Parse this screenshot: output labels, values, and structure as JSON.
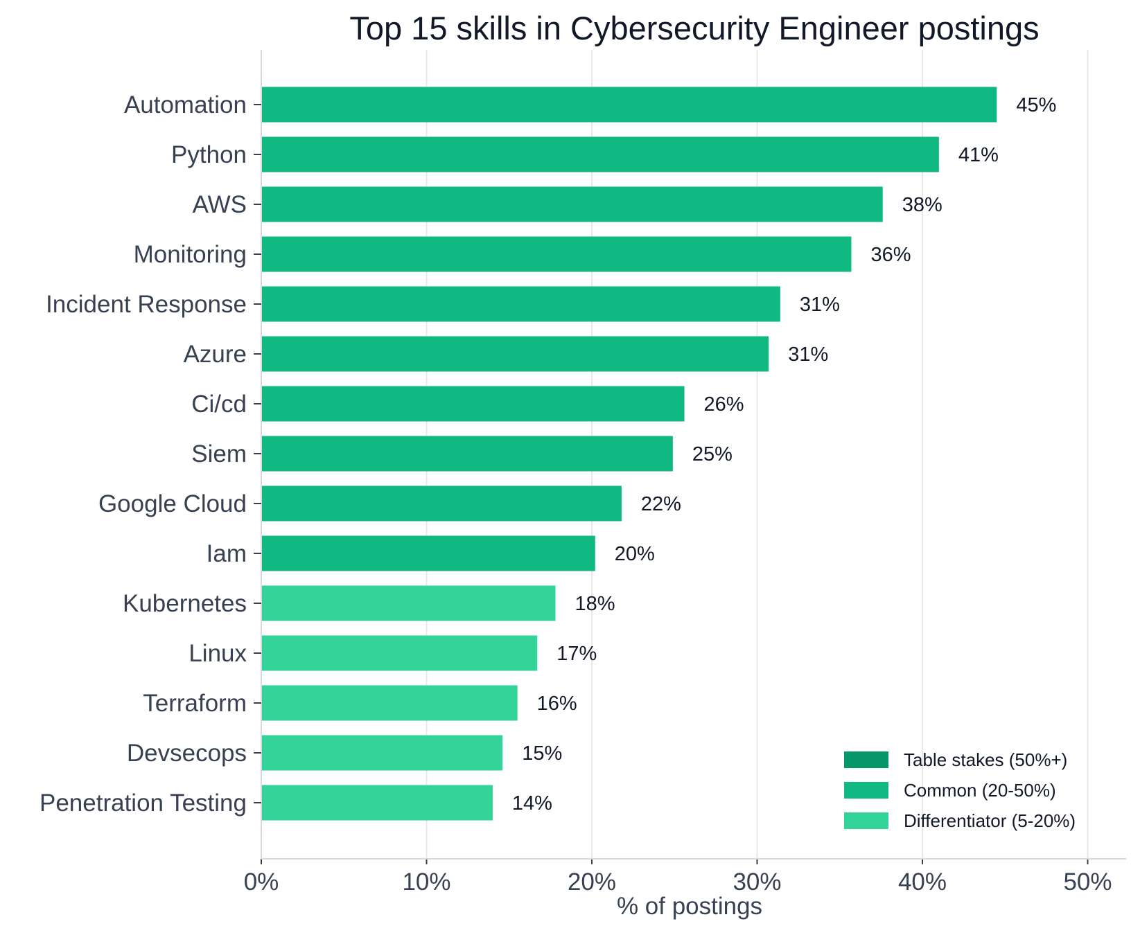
{
  "chart_data": {
    "type": "bar",
    "orientation": "horizontal",
    "title": "Top 15 skills in Cybersecurity Engineer postings",
    "xlabel": "% of postings",
    "ylabel": "",
    "xlim": [
      0,
      52
    ],
    "x_ticks": [
      0,
      10,
      20,
      30,
      40,
      50
    ],
    "x_tick_labels": [
      "0%",
      "10%",
      "20%",
      "30%",
      "40%",
      "50%"
    ],
    "grid": "vertical",
    "legend_position": "bottom-right",
    "categories": [
      "Automation",
      "Python",
      "AWS",
      "Monitoring",
      "Incident Response",
      "Azure",
      "Ci/cd",
      "Siem",
      "Google Cloud",
      "Iam",
      "Kubernetes",
      "Linux",
      "Terraform",
      "Devsecops",
      "Penetration Testing"
    ],
    "values": [
      44.5,
      41.0,
      37.6,
      35.7,
      31.4,
      30.7,
      25.6,
      24.9,
      21.8,
      20.2,
      17.8,
      16.7,
      15.5,
      14.6,
      14.0
    ],
    "value_labels": [
      "45%",
      "41%",
      "38%",
      "36%",
      "31%",
      "31%",
      "26%",
      "25%",
      "22%",
      "20%",
      "18%",
      "17%",
      "16%",
      "15%",
      "14%"
    ],
    "tiers": [
      "Common",
      "Common",
      "Common",
      "Common",
      "Common",
      "Common",
      "Common",
      "Common",
      "Common",
      "Common",
      "Differentiator",
      "Differentiator",
      "Differentiator",
      "Differentiator",
      "Differentiator"
    ],
    "legend": [
      {
        "key": "Table stakes",
        "label": "Table stakes (50%+)",
        "color": "#059669"
      },
      {
        "key": "Common",
        "label": "Common (20-50%)",
        "color": "#10b981"
      },
      {
        "key": "Differentiator",
        "label": "Differentiator (5-20%)",
        "color": "#34d399"
      }
    ]
  }
}
